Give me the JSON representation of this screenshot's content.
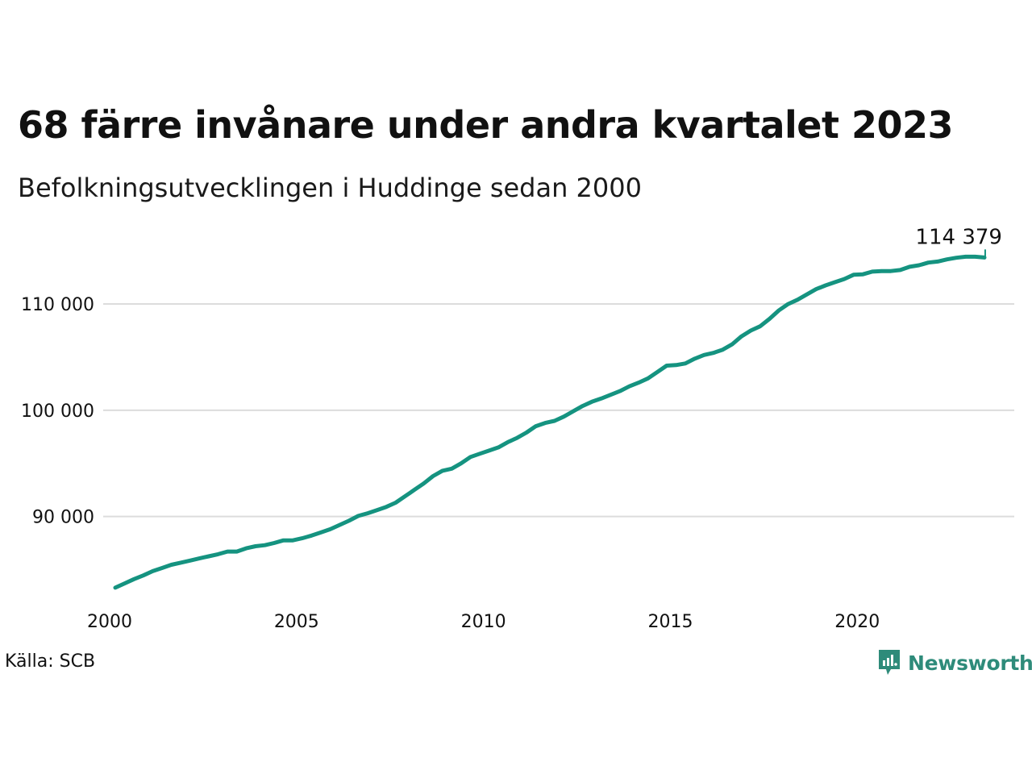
{
  "chart_data": {
    "type": "line",
    "title": "68 färre invånare under andra kvartalet 2023",
    "subtitle": "Befolkningsutvecklingen i Huddinge sedan 2000",
    "xlabel": "",
    "ylabel": "",
    "xlim": [
      2000,
      2024.2
    ],
    "ylim": [
      82000,
      116000
    ],
    "x_ticks": [
      2000,
      2005,
      2010,
      2015,
      2020
    ],
    "x_tick_labels": [
      "2000",
      "2005",
      "2010",
      "2015",
      "2020"
    ],
    "y_ticks": [
      90000,
      100000,
      110000
    ],
    "y_tick_labels": [
      "90 000",
      "100 000",
      "110 000"
    ],
    "grid": "horizontal",
    "legend": "none",
    "end_label": "114 379",
    "line_color": "#159380",
    "series": [
      {
        "x": [
          2000.0,
          2000.25,
          2000.5,
          2000.75,
          2001.0,
          2001.25,
          2001.5,
          2001.75,
          2002.0,
          2002.25,
          2002.5,
          2002.75,
          2003.0,
          2003.25,
          2003.5,
          2003.75,
          2004.0,
          2004.25,
          2004.5,
          2004.75,
          2005.0,
          2005.25,
          2005.5,
          2005.75,
          2006.0,
          2006.25,
          2006.5,
          2006.75,
          2007.0,
          2007.25,
          2007.5,
          2007.75,
          2008.0,
          2008.25,
          2008.5,
          2008.75,
          2009.0,
          2009.25,
          2009.5,
          2009.75,
          2010.0,
          2010.25,
          2010.5,
          2010.75,
          2011.0,
          2011.25,
          2011.5,
          2011.75,
          2012.0,
          2012.25,
          2012.5,
          2012.75,
          2013.0,
          2013.25,
          2013.5,
          2013.75,
          2014.0,
          2014.25,
          2014.5,
          2014.75,
          2015.0,
          2015.25,
          2015.5,
          2015.75,
          2016.0,
          2016.25,
          2016.5,
          2016.75,
          2017.0,
          2017.25,
          2017.5,
          2017.75,
          2018.0,
          2018.25,
          2018.5,
          2018.75,
          2019.0,
          2019.25,
          2019.5,
          2019.75,
          2020.0,
          2020.25,
          2020.5,
          2020.75,
          2021.0,
          2021.25,
          2021.5,
          2021.75,
          2022.0,
          2022.25,
          2022.5,
          2022.75,
          2023.0,
          2023.25
        ],
        "y": [
          83300,
          83700,
          84100,
          84450,
          84850,
          85150,
          85450,
          85650,
          85850,
          86050,
          86250,
          86450,
          86700,
          86700,
          87000,
          87200,
          87300,
          87500,
          87750,
          87750,
          87950,
          88200,
          88500,
          88800,
          89200,
          89600,
          90050,
          90300,
          90600,
          90900,
          91300,
          91900,
          92500,
          93100,
          93800,
          94300,
          94500,
          95000,
          95600,
          95900,
          96200,
          96500,
          97000,
          97400,
          97900,
          98500,
          98800,
          99000,
          99400,
          99900,
          100400,
          100800,
          101100,
          101450,
          101800,
          102250,
          102600,
          103000,
          103600,
          104200,
          104250,
          104400,
          104850,
          105200,
          105400,
          105700,
          106200,
          106950,
          107500,
          107900,
          108600,
          109400,
          110000,
          110400,
          110900,
          111400,
          111750,
          112050,
          112350,
          112750,
          112800,
          113050,
          113100,
          113100,
          113200,
          113500,
          113650,
          113900,
          114000,
          114200,
          114350,
          114450,
          114450,
          114379
        ]
      }
    ]
  },
  "source": "Källa: SCB",
  "brand": {
    "name": "Newsworthy",
    "color": "#2e8b7a",
    "icon": "chart-bubble-icon"
  }
}
